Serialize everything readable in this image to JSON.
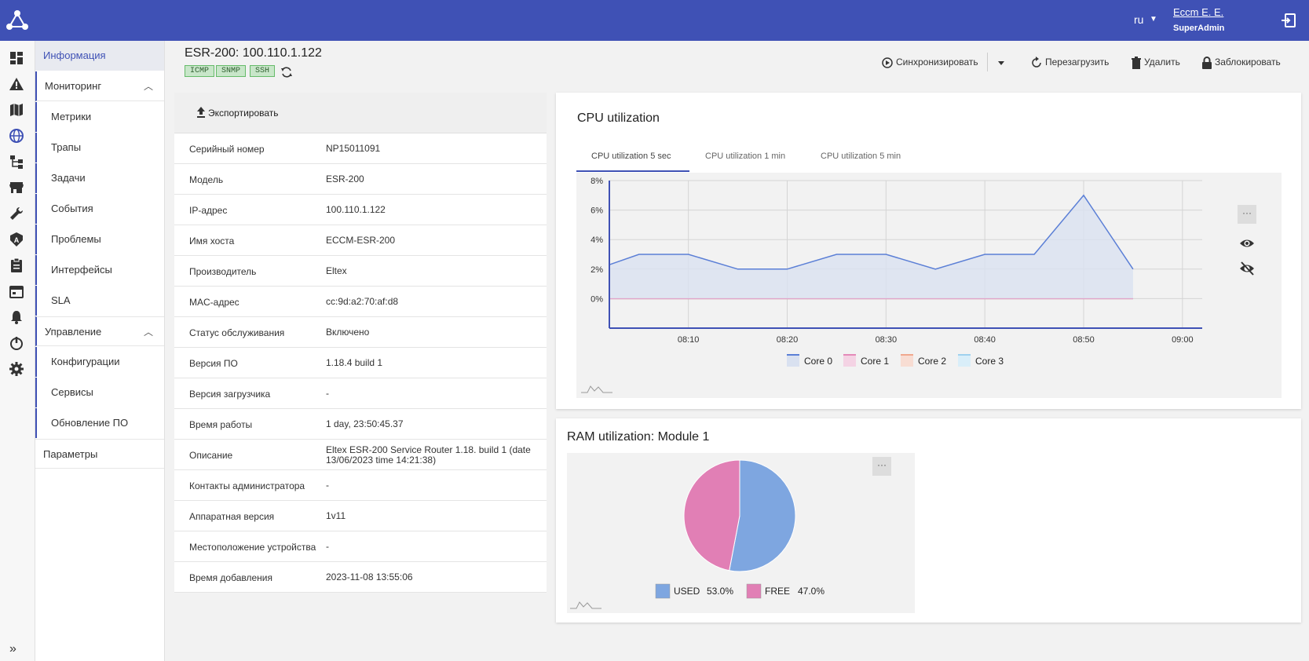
{
  "topbar": {
    "lang": "ru",
    "user_name": "Eccm E. E.",
    "user_role": "SuperAdmin",
    "bg_color": "#3f51b5"
  },
  "rail": {
    "icons": [
      "dashboard-icon",
      "alert-icon",
      "map-icon",
      "globe-icon",
      "topology-icon",
      "store-icon",
      "wrench-icon",
      "admin-icon",
      "clipboard-icon",
      "calendar-icon",
      "bell-icon",
      "power-icon",
      "gear-icon"
    ]
  },
  "sidebar": {
    "info": "Информация",
    "monitoring": "Мониторинг",
    "monitoring_items": [
      "Метрики",
      "Трапы",
      "Задачи",
      "События",
      "Проблемы",
      "Интерфейсы",
      "SLA"
    ],
    "management": "Управление",
    "management_items": [
      "Конфигурации",
      "Сервисы",
      "Обновление ПО"
    ],
    "params": "Параметры"
  },
  "device": {
    "title": "ESR-200: 100.110.1.122",
    "badges": [
      "ICMP",
      "SNMP",
      "SSH"
    ]
  },
  "actions": {
    "sync": "Синхронизировать",
    "reboot": "Перезагрузить",
    "delete": "Удалить",
    "lock": "Заблокировать"
  },
  "info": {
    "export": "Экспортировать",
    "rows": [
      {
        "k": "Серийный номер",
        "v": "NP15011091"
      },
      {
        "k": "Модель",
        "v": "ESR-200"
      },
      {
        "k": "IP-адрес",
        "v": "100.110.1.122"
      },
      {
        "k": "Имя хоста",
        "v": "ECCM-ESR-200"
      },
      {
        "k": "Производитель",
        "v": "Eltex"
      },
      {
        "k": "MAC-адрес",
        "v": "cc:9d:a2:70:af:d8"
      },
      {
        "k": "Статус обслуживания",
        "v": "Включено"
      },
      {
        "k": "Версия ПО",
        "v": "1.18.4 build 1"
      },
      {
        "k": "Версия загрузчика",
        "v": "-"
      },
      {
        "k": "Время работы",
        "v": "1 day, 23:50:45.37"
      },
      {
        "k": "Описание",
        "v": "Eltex ESR-200 Service Router 1.18. build 1 (date 13/06/2023 time 14:21:38)"
      },
      {
        "k": "Контакты администратора",
        "v": "-"
      },
      {
        "k": "Аппаратная версия",
        "v": "1v11"
      },
      {
        "k": "Местоположение устройства",
        "v": "-"
      },
      {
        "k": "Время добавления",
        "v": "2023-11-08 13:55:06"
      }
    ]
  },
  "cpu": {
    "title": "CPU utilization",
    "tabs": [
      "CPU utilization 5 sec",
      "CPU utilization 1 min",
      "CPU utilization 5 min"
    ],
    "more": "···"
  },
  "ram": {
    "title": "RAM utilization: Module 1",
    "more": "···"
  },
  "chart_data": [
    {
      "type": "area",
      "x_ticks": [
        "08:10",
        "08:20",
        "08:30",
        "08:40",
        "08:50",
        "09:00"
      ],
      "y_ticks": [
        "8%",
        "6%",
        "4%",
        "2%",
        "0%"
      ],
      "ylim": [
        -2,
        8
      ],
      "x": [
        "08:02",
        "08:05",
        "08:10",
        "08:15",
        "08:20",
        "08:25",
        "08:30",
        "08:35",
        "08:40",
        "08:45",
        "08:50",
        "08:55"
      ],
      "series": [
        {
          "name": "Core 0",
          "values": [
            2.3,
            3,
            3,
            2,
            2,
            3,
            3,
            2,
            3,
            3,
            7,
            2
          ],
          "color": "#5b7fd6",
          "fill": "#d9e1f0"
        },
        {
          "name": "Core 1",
          "values": [
            0,
            0,
            0,
            0,
            0,
            0,
            0,
            0,
            0,
            0,
            0,
            0
          ],
          "color": "#e48ab8",
          "fill": "#f4d3e4"
        },
        {
          "name": "Core 2",
          "values": [
            0,
            0,
            0,
            0,
            0,
            0,
            0,
            0,
            0,
            0,
            0,
            0
          ],
          "color": "#f0a88e",
          "fill": "#f8ddd3"
        },
        {
          "name": "Core 3",
          "values": [
            0,
            0,
            0,
            0,
            0,
            0,
            0,
            0,
            0,
            0,
            0,
            0
          ],
          "color": "#9fd1ee",
          "fill": "#d9eef9"
        }
      ],
      "grid": true,
      "legend": "bottom"
    },
    {
      "type": "pie",
      "slices": [
        {
          "name": "USED",
          "value": 53.0,
          "label": "53.0%",
          "color": "#7ea6e0"
        },
        {
          "name": "FREE",
          "value": 47.0,
          "label": "47.0%",
          "color": "#e17fb5"
        }
      ],
      "legend": "bottom"
    }
  ]
}
